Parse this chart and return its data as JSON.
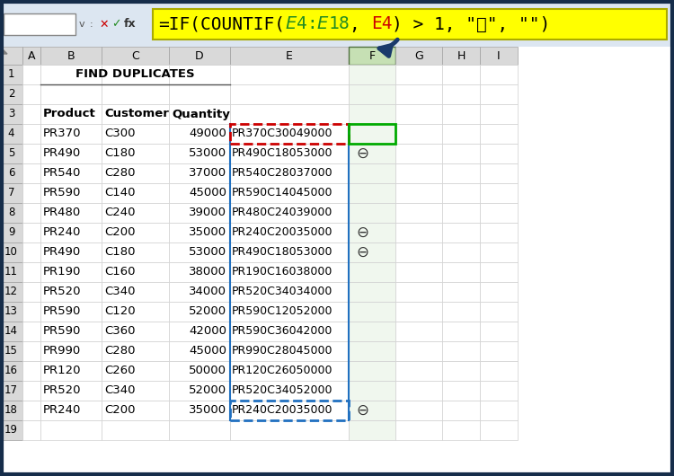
{
  "title": "FIND DUPLICATES",
  "formula_parts": [
    {
      "text": "=IF(COUNTIF(",
      "color": "#000000"
    },
    {
      "text": "$E$4:$E$18",
      "color": "#228B22"
    },
    {
      "text": ", ",
      "color": "#000000"
    },
    {
      "text": "E4",
      "color": "#CC0000"
    },
    {
      "text": ") > 1, \"⛔\", \"\")",
      "color": "#000000"
    }
  ],
  "col_letters": [
    "A",
    "B",
    "C",
    "D",
    "E",
    "F",
    "G",
    "H",
    "I"
  ],
  "rows": [
    {
      "row": 4,
      "product": "PR370",
      "customer": "C300",
      "qty": "49000",
      "concat": "PR370C30049000",
      "flag": ""
    },
    {
      "row": 5,
      "product": "PR490",
      "customer": "C180",
      "qty": "53000",
      "concat": "PR490C18053000",
      "flag": "⊖"
    },
    {
      "row": 6,
      "product": "PR540",
      "customer": "C280",
      "qty": "37000",
      "concat": "PR540C28037000",
      "flag": ""
    },
    {
      "row": 7,
      "product": "PR590",
      "customer": "C140",
      "qty": "45000",
      "concat": "PR590C14045000",
      "flag": ""
    },
    {
      "row": 8,
      "product": "PR480",
      "customer": "C240",
      "qty": "39000",
      "concat": "PR480C24039000",
      "flag": ""
    },
    {
      "row": 9,
      "product": "PR240",
      "customer": "C200",
      "qty": "35000",
      "concat": "PR240C20035000",
      "flag": "⊖"
    },
    {
      "row": 10,
      "product": "PR490",
      "customer": "C180",
      "qty": "53000",
      "concat": "PR490C18053000",
      "flag": "⊖"
    },
    {
      "row": 11,
      "product": "PR190",
      "customer": "C160",
      "qty": "38000",
      "concat": "PR190C16038000",
      "flag": ""
    },
    {
      "row": 12,
      "product": "PR520",
      "customer": "C340",
      "qty": "34000",
      "concat": "PR520C34034000",
      "flag": ""
    },
    {
      "row": 13,
      "product": "PR590",
      "customer": "C120",
      "qty": "52000",
      "concat": "PR590C12052000",
      "flag": ""
    },
    {
      "row": 14,
      "product": "PR590",
      "customer": "C360",
      "qty": "42000",
      "concat": "PR590C36042000",
      "flag": ""
    },
    {
      "row": 15,
      "product": "PR990",
      "customer": "C280",
      "qty": "45000",
      "concat": "PR990C28045000",
      "flag": ""
    },
    {
      "row": 16,
      "product": "PR120",
      "customer": "C260",
      "qty": "50000",
      "concat": "PR120C26050000",
      "flag": ""
    },
    {
      "row": 17,
      "product": "PR520",
      "customer": "C340",
      "qty": "52000",
      "concat": "PR520C34052000",
      "flag": ""
    },
    {
      "row": 18,
      "product": "PR240",
      "customer": "C200",
      "qty": "35000",
      "concat": "PR240C20035000",
      "flag": "⊖"
    }
  ],
  "bg_color": "#1f4e79",
  "formula_bar_bg": "#ffff00",
  "cell_bg": "#ffffff",
  "f_col_bg": "#f0f7ee",
  "grid_color": "#c0c0c0",
  "hdr_bg": "#d9d9d9",
  "f_hdr_bg": "#c6e0b4",
  "flag_color": "#333333"
}
